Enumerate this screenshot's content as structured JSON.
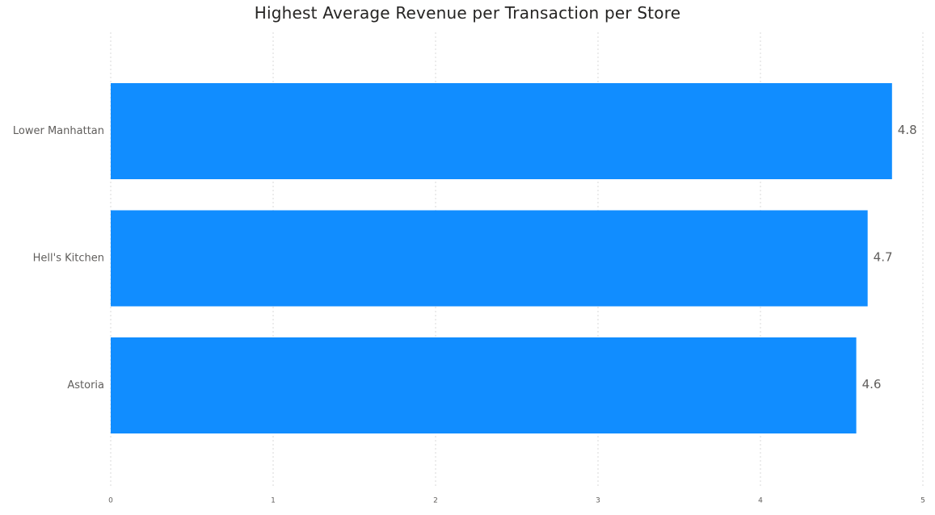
{
  "chart_data": {
    "type": "bar",
    "orientation": "horizontal",
    "title": "Highest Average Revenue per Transaction per Store",
    "categories": [
      "Lower Manhattan",
      "Hell's Kitchen",
      "Astoria"
    ],
    "values": [
      4.81,
      4.66,
      4.59
    ],
    "data_labels": [
      "4.8",
      "4.7",
      "4.6"
    ],
    "xlim": [
      0,
      5
    ],
    "x_ticks": [
      0,
      1,
      2,
      3,
      4,
      5
    ],
    "xlabel": "",
    "ylabel": "",
    "grid": true,
    "legend": "none",
    "bar_color": "#118DFF"
  }
}
